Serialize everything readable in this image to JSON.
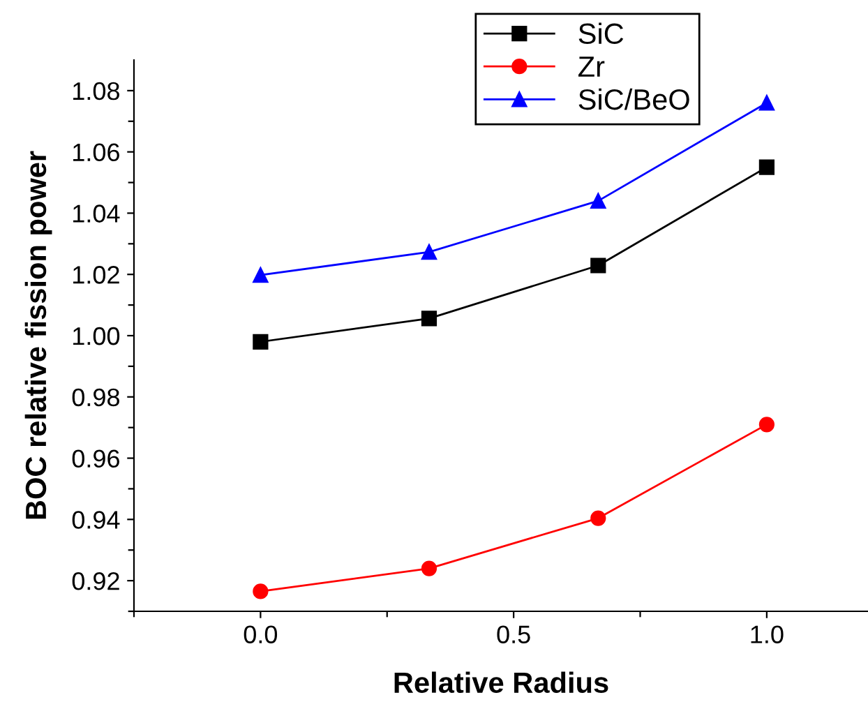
{
  "chart_data": {
    "type": "line",
    "xlabel": "Relative Radius",
    "ylabel": "BOC relative fission power",
    "x": [
      0,
      0.333,
      0.667,
      1
    ],
    "series": [
      {
        "name": "SiC",
        "color": "#000000",
        "marker": "square",
        "values": [
          0.998,
          1.0056,
          1.0229,
          1.055
        ]
      },
      {
        "name": "Zr",
        "color": "#ff0000",
        "marker": "circle",
        "values": [
          0.9165,
          0.924,
          0.9404,
          0.971
        ]
      },
      {
        "name": "SiC/BeO",
        "color": "#0000ff",
        "marker": "triangle",
        "values": [
          1.0198,
          1.0273,
          1.044,
          1.076
        ]
      }
    ],
    "xlim": [
      -0.25,
      1.2
    ],
    "ylim": [
      0.91,
      1.09
    ],
    "xticks": [
      {
        "value": -0.25,
        "label": null
      },
      {
        "value": 0,
        "label": "0.0"
      },
      {
        "value": 0.25,
        "label": null
      },
      {
        "value": 0.5,
        "label": "0.5"
      },
      {
        "value": 0.75,
        "label": null
      },
      {
        "value": 1,
        "label": "1.0"
      }
    ],
    "yticks": [
      {
        "value": 0.91,
        "label": null
      },
      0.92,
      {
        "value": 0.93,
        "label": null
      },
      0.94,
      {
        "value": 0.95,
        "label": null
      },
      0.96,
      {
        "value": 0.97,
        "label": null
      },
      0.98,
      {
        "value": 0.99,
        "label": null
      },
      {
        "value": 1.0,
        "label": "1.00"
      },
      {
        "value": 1.01,
        "label": null
      },
      1.02,
      {
        "value": 1.03,
        "label": null
      },
      1.04,
      {
        "value": 1.05,
        "label": null
      },
      1.06,
      {
        "value": 1.07,
        "label": null
      },
      1.08
    ],
    "grid": false,
    "legend": "top right",
    "line_style": "solid"
  }
}
